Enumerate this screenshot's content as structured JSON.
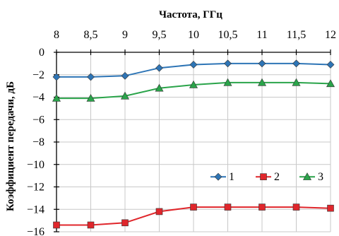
{
  "chart_data": {
    "type": "line",
    "xlabel": "Частота, ГГц",
    "ylabel": "Коэффициент передачи, дБ",
    "x": [
      8,
      8.5,
      9,
      9.5,
      10,
      10.5,
      11,
      11.5,
      12
    ],
    "x_tick_labels": [
      "8",
      "8,5",
      "9",
      "9,5",
      "10",
      "10,5",
      "11",
      "11,5",
      "12"
    ],
    "y_ticks": [
      0,
      -2,
      -4,
      -6,
      -8,
      -10,
      -12,
      -14,
      -16
    ],
    "xlim": [
      8,
      12
    ],
    "ylim": [
      -16,
      0
    ],
    "x_axis_position": "top",
    "grid": true,
    "legend_position": "middle-right",
    "series": [
      {
        "name": "1",
        "color": "#2e75b6",
        "marker": "diamond",
        "values": [
          -2.2,
          -2.2,
          -2.1,
          -1.4,
          -1.1,
          -1.0,
          -1.0,
          -1.0,
          -1.1
        ]
      },
      {
        "name": "2",
        "color": "#e0262b",
        "marker": "square",
        "values": [
          -15.4,
          -15.4,
          -15.2,
          -14.2,
          -13.8,
          -13.8,
          -13.8,
          -13.8,
          -13.9
        ]
      },
      {
        "name": "3",
        "color": "#2aa44a",
        "marker": "triangle",
        "values": [
          -4.1,
          -4.1,
          -3.9,
          -3.2,
          -2.9,
          -2.7,
          -2.7,
          -2.7,
          -2.8
        ]
      }
    ]
  }
}
